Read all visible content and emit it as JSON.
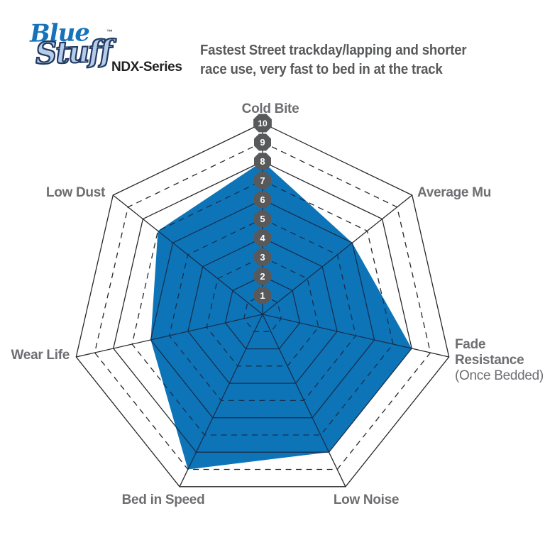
{
  "header": {
    "logo": {
      "word1": "Blue",
      "word2": "Stuff",
      "trademark": "™",
      "series": "NDX-Series"
    },
    "description": {
      "line1": "Fastest Street trackday/lapping and shorter",
      "line2": "race use, very fast to bed in at the track"
    }
  },
  "chart_data": {
    "type": "radar",
    "categories": [
      "Cold Bite",
      "Average Mu",
      "Fade Resistance (Once Bedded)",
      "Low Noise",
      "Bed in Speed",
      "Wear Life",
      "Low Dust"
    ],
    "values": [
      8,
      6,
      8,
      8,
      9,
      6,
      7
    ],
    "scale": {
      "min": 0,
      "max": 10,
      "tick_labels": [
        "1",
        "2",
        "3",
        "4",
        "5",
        "6",
        "7",
        "8",
        "9",
        "10"
      ]
    },
    "grid": {
      "shape": "heptagon",
      "even_rings": "solid",
      "odd_rings": "dashed",
      "legend": "none"
    },
    "colors": {
      "fill": "#0e74b8",
      "grid": "#28282b",
      "grid_over_fill": "#16304d",
      "tick_badge": "#58595b",
      "tick_text": "#ffffff",
      "axis_label": "#6d6e71"
    },
    "axis_labels": {
      "cold_bite": "Cold Bite",
      "average_mu": "Average Mu",
      "fade_line1": "Fade",
      "fade_line2": "Resistance",
      "fade_sub": "(Once Bedded)",
      "low_noise": "Low Noise",
      "bed_in_speed": "Bed in Speed",
      "wear_life": "Wear Life",
      "low_dust": "Low Dust"
    }
  }
}
